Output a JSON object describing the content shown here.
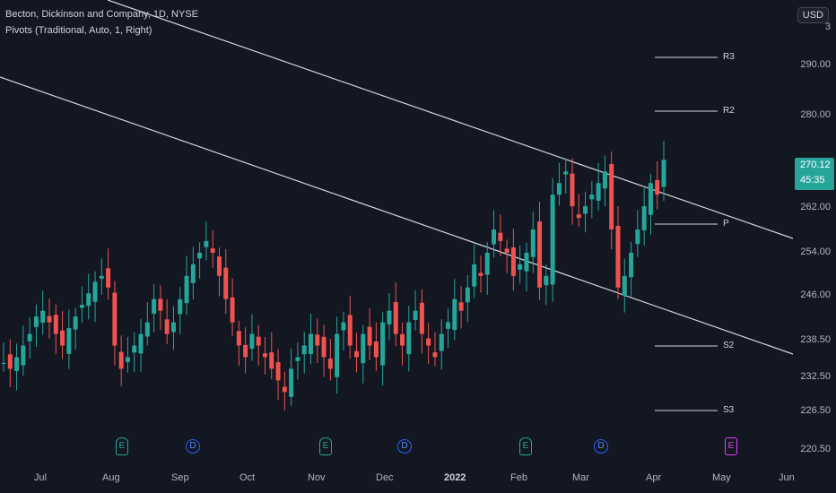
{
  "header": {
    "title": "Becton, Dickinson and Company, 1D, NYSE",
    "indicator": "Pivots (Traditional, Auto, 1, Right)"
  },
  "currency_button": "USD",
  "price_tag": {
    "price": "270.12",
    "countdown": "45:35",
    "color": "#26a69a"
  },
  "y_axis": [
    "290.00",
    "280.00",
    "262.00",
    "254.00",
    "246.00",
    "238.50",
    "232.50",
    "226.50",
    "220.50"
  ],
  "y_axis_top_partial": "3",
  "x_axis": [
    "Jul",
    "Aug",
    "Sep",
    "Oct",
    "Nov",
    "Dec",
    "2022",
    "Feb",
    "Mar",
    "Apr",
    "May",
    "Jun"
  ],
  "pivots": [
    "R3",
    "R2",
    "P",
    "S2",
    "S3"
  ],
  "events": [
    "E",
    "D",
    "E",
    "D",
    "E",
    "D",
    "E"
  ],
  "colors": {
    "up": "#26a69a",
    "down": "#ef5350",
    "background": "#131722",
    "trendline": "#d1d4dc"
  },
  "chart_data": {
    "type": "candlestick",
    "title": "Becton, Dickinson and Company, 1D, NYSE",
    "ylim": [
      218,
      296
    ],
    "close_approx": [
      235,
      234,
      236,
      238,
      240,
      243,
      244,
      242,
      240,
      238,
      241,
      243,
      245,
      247,
      249,
      250,
      248,
      238,
      234,
      236,
      238,
      240,
      242,
      246,
      244,
      240,
      242,
      246,
      250,
      252,
      254,
      256,
      254,
      250,
      246,
      242,
      238,
      236,
      240,
      238,
      236,
      234,
      232,
      230,
      234,
      236,
      238,
      240,
      238,
      236,
      234,
      240,
      242,
      238,
      236,
      240,
      238,
      236,
      242,
      244,
      240,
      238,
      242,
      244,
      240,
      238,
      236,
      240,
      242,
      246,
      244,
      248,
      252,
      250,
      254,
      258,
      256,
      254,
      250,
      252,
      254,
      258,
      248,
      250,
      264,
      266,
      268,
      262,
      260,
      262,
      264,
      266,
      268,
      258,
      248,
      250,
      254,
      258,
      262,
      266,
      264,
      270
    ]
  }
}
